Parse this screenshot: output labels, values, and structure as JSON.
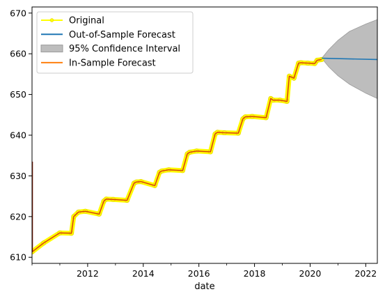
{
  "chart_data": {
    "type": "line",
    "title": "",
    "xlabel": "date",
    "ylabel": "",
    "xlim": [
      "2010-01-01",
      "2022-06-01"
    ],
    "ylim": [
      608.5,
      671.5
    ],
    "x_ticks": [
      "2012",
      "2014",
      "2016",
      "2018",
      "2020",
      "2022"
    ],
    "y_ticks": [
      "610",
      "620",
      "630",
      "640",
      "650",
      "660",
      "670"
    ],
    "grid": false,
    "legend_position": "top-left",
    "colors": {
      "original": "#ffff00",
      "original_marker_edge": "#e0c800",
      "forecast": "#1f77b4",
      "confidence": "#9a9a9a",
      "in_sample": "#ff7f0e",
      "in_sample_dark": "#8b1a00",
      "axis": "#000000"
    },
    "legend": [
      {
        "label": "Original",
        "key": "original"
      },
      {
        "label": "Out-of-Sample Forecast",
        "key": "forecast"
      },
      {
        "label": "95% Confidence Interval",
        "key": "confidence"
      },
      {
        "label": "In-Sample Forecast",
        "key": "in_sample"
      }
    ],
    "series": [
      {
        "name": "Original",
        "x": [
          "2010-01",
          "2010-06",
          "2011-01",
          "2011-06",
          "2011-07",
          "2011-09",
          "2011-12",
          "2012-06",
          "2012-08",
          "2012-09",
          "2012-12",
          "2013-06",
          "2013-09",
          "2013-10",
          "2013-12",
          "2014-06",
          "2014-08",
          "2014-09",
          "2014-12",
          "2015-06",
          "2015-08",
          "2015-09",
          "2015-12",
          "2016-06",
          "2016-08",
          "2016-09",
          "2016-12",
          "2017-06",
          "2017-08",
          "2017-09",
          "2017-12",
          "2018-06",
          "2018-08",
          "2018-09",
          "2018-12",
          "2019-03",
          "2019-04",
          "2019-06",
          "2019-08",
          "2019-09",
          "2019-12",
          "2020-03",
          "2020-04",
          "2020-06"
        ],
        "y": [
          611.3,
          613.5,
          616.0,
          615.9,
          620.0,
          621.1,
          621.3,
          620.6,
          623.8,
          624.3,
          624.2,
          624.0,
          628.2,
          628.5,
          628.6,
          627.6,
          630.9,
          631.2,
          631.5,
          631.3,
          635.4,
          635.8,
          636.1,
          635.9,
          640.3,
          640.7,
          640.6,
          640.5,
          644.0,
          644.5,
          644.6,
          644.3,
          649.0,
          648.6,
          648.6,
          648.3,
          654.5,
          654.0,
          657.7,
          657.8,
          657.7,
          657.6,
          658.4,
          658.6
        ]
      },
      {
        "name": "Out-of-Sample Forecast",
        "x": [
          "2020-06",
          "2022-06"
        ],
        "y": [
          658.9,
          658.6
        ]
      },
      {
        "name": "95% Confidence Interval",
        "x": [
          "2020-06",
          "2020-09",
          "2021-01",
          "2021-06",
          "2022-01",
          "2022-06"
        ],
        "lower": [
          658.9,
          656.8,
          654.6,
          652.5,
          650.3,
          649.0
        ],
        "upper": [
          658.9,
          661.0,
          663.3,
          665.5,
          667.3,
          668.4
        ]
      },
      {
        "name": "In-Sample Forecast",
        "x": [
          "2010-01",
          "2010-06",
          "2011-01",
          "2011-06",
          "2011-07",
          "2011-09",
          "2011-12",
          "2012-06",
          "2012-08",
          "2012-09",
          "2012-12",
          "2013-06",
          "2013-09",
          "2013-10",
          "2013-12",
          "2014-06",
          "2014-08",
          "2014-09",
          "2014-12",
          "2015-06",
          "2015-08",
          "2015-09",
          "2015-12",
          "2016-06",
          "2016-08",
          "2016-09",
          "2016-12",
          "2017-06",
          "2017-08",
          "2017-09",
          "2017-12",
          "2018-06",
          "2018-08",
          "2018-09",
          "2018-12",
          "2019-03",
          "2019-04",
          "2019-06",
          "2019-08",
          "2019-09",
          "2019-12",
          "2020-03",
          "2020-04",
          "2020-06"
        ],
        "y": [
          611.3,
          613.5,
          616.0,
          615.9,
          620.0,
          621.1,
          621.3,
          620.6,
          623.8,
          624.3,
          624.2,
          624.0,
          628.2,
          628.5,
          628.6,
          627.6,
          630.9,
          631.2,
          631.5,
          631.3,
          635.4,
          635.8,
          636.1,
          635.9,
          640.3,
          640.7,
          640.6,
          640.5,
          644.0,
          644.5,
          644.6,
          644.3,
          649.0,
          648.6,
          648.6,
          648.3,
          654.5,
          654.0,
          657.7,
          657.8,
          657.7,
          657.6,
          658.4,
          658.6
        ]
      }
    ]
  }
}
